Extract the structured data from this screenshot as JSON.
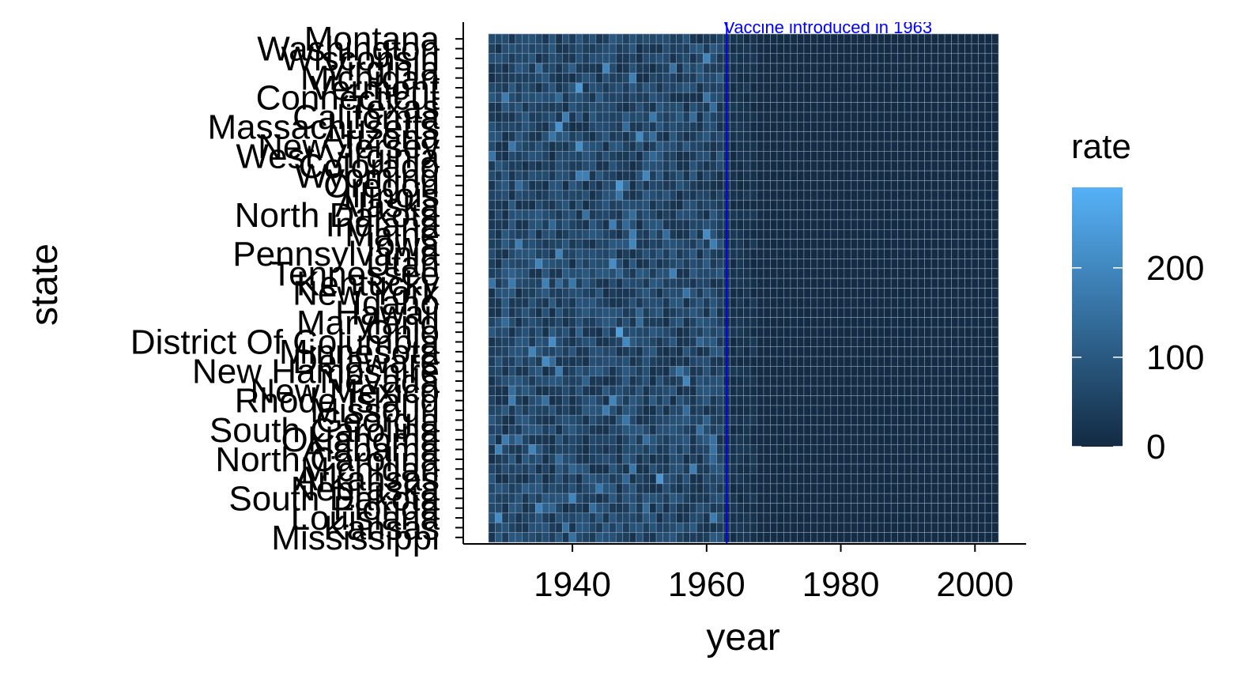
{
  "chart_data": {
    "type": "heatmap",
    "title": "",
    "xlabel": "year",
    "ylabel": "state",
    "x_ticks": [
      1940,
      1960,
      1980,
      2000
    ],
    "x_range": [
      1928,
      2003
    ],
    "states": [
      "Montana",
      "Washington",
      "Wisconsin",
      "Virginia",
      "Michigan",
      "Vermont",
      "Connecticut",
      "Texas",
      "California",
      "Massachusetts",
      "Arizona",
      "New Jersey",
      "West Virginia",
      "Colorado",
      "Wyoming",
      "Oregon",
      "Illinois",
      "Alaska",
      "North Dakota",
      "Indiana",
      "Maine",
      "Iowa",
      "Pennsylvania",
      "Utah",
      "Tennessee",
      "Kentucky",
      "New York",
      "Idaho",
      "Hawaii",
      "Maryland",
      "Ohio",
      "District Of Columbia",
      "Minnesota",
      "Delaware",
      "New Hampshire",
      "Nevada",
      "New Mexico",
      "Rhode Island",
      "Missouri",
      "Georgia",
      "South Carolina",
      "Oklahoma",
      "Alabama",
      "North Carolina",
      "Michigan",
      "Arkansas",
      "Nebraska",
      "South Dakota",
      "Florida",
      "Louisiana",
      "Kansas",
      "Mississippi"
    ],
    "fill_scale": {
      "low": "#132B43",
      "high": "#56B1F7",
      "domain": [
        0,
        290
      ]
    },
    "legend": {
      "title": "rate",
      "ticks": [
        0,
        100,
        200
      ],
      "placement": "right"
    },
    "annotation": {
      "x": 1963,
      "text": "Vaccine introduced in 1963",
      "color": "#0000FF"
    },
    "grid": false
  }
}
